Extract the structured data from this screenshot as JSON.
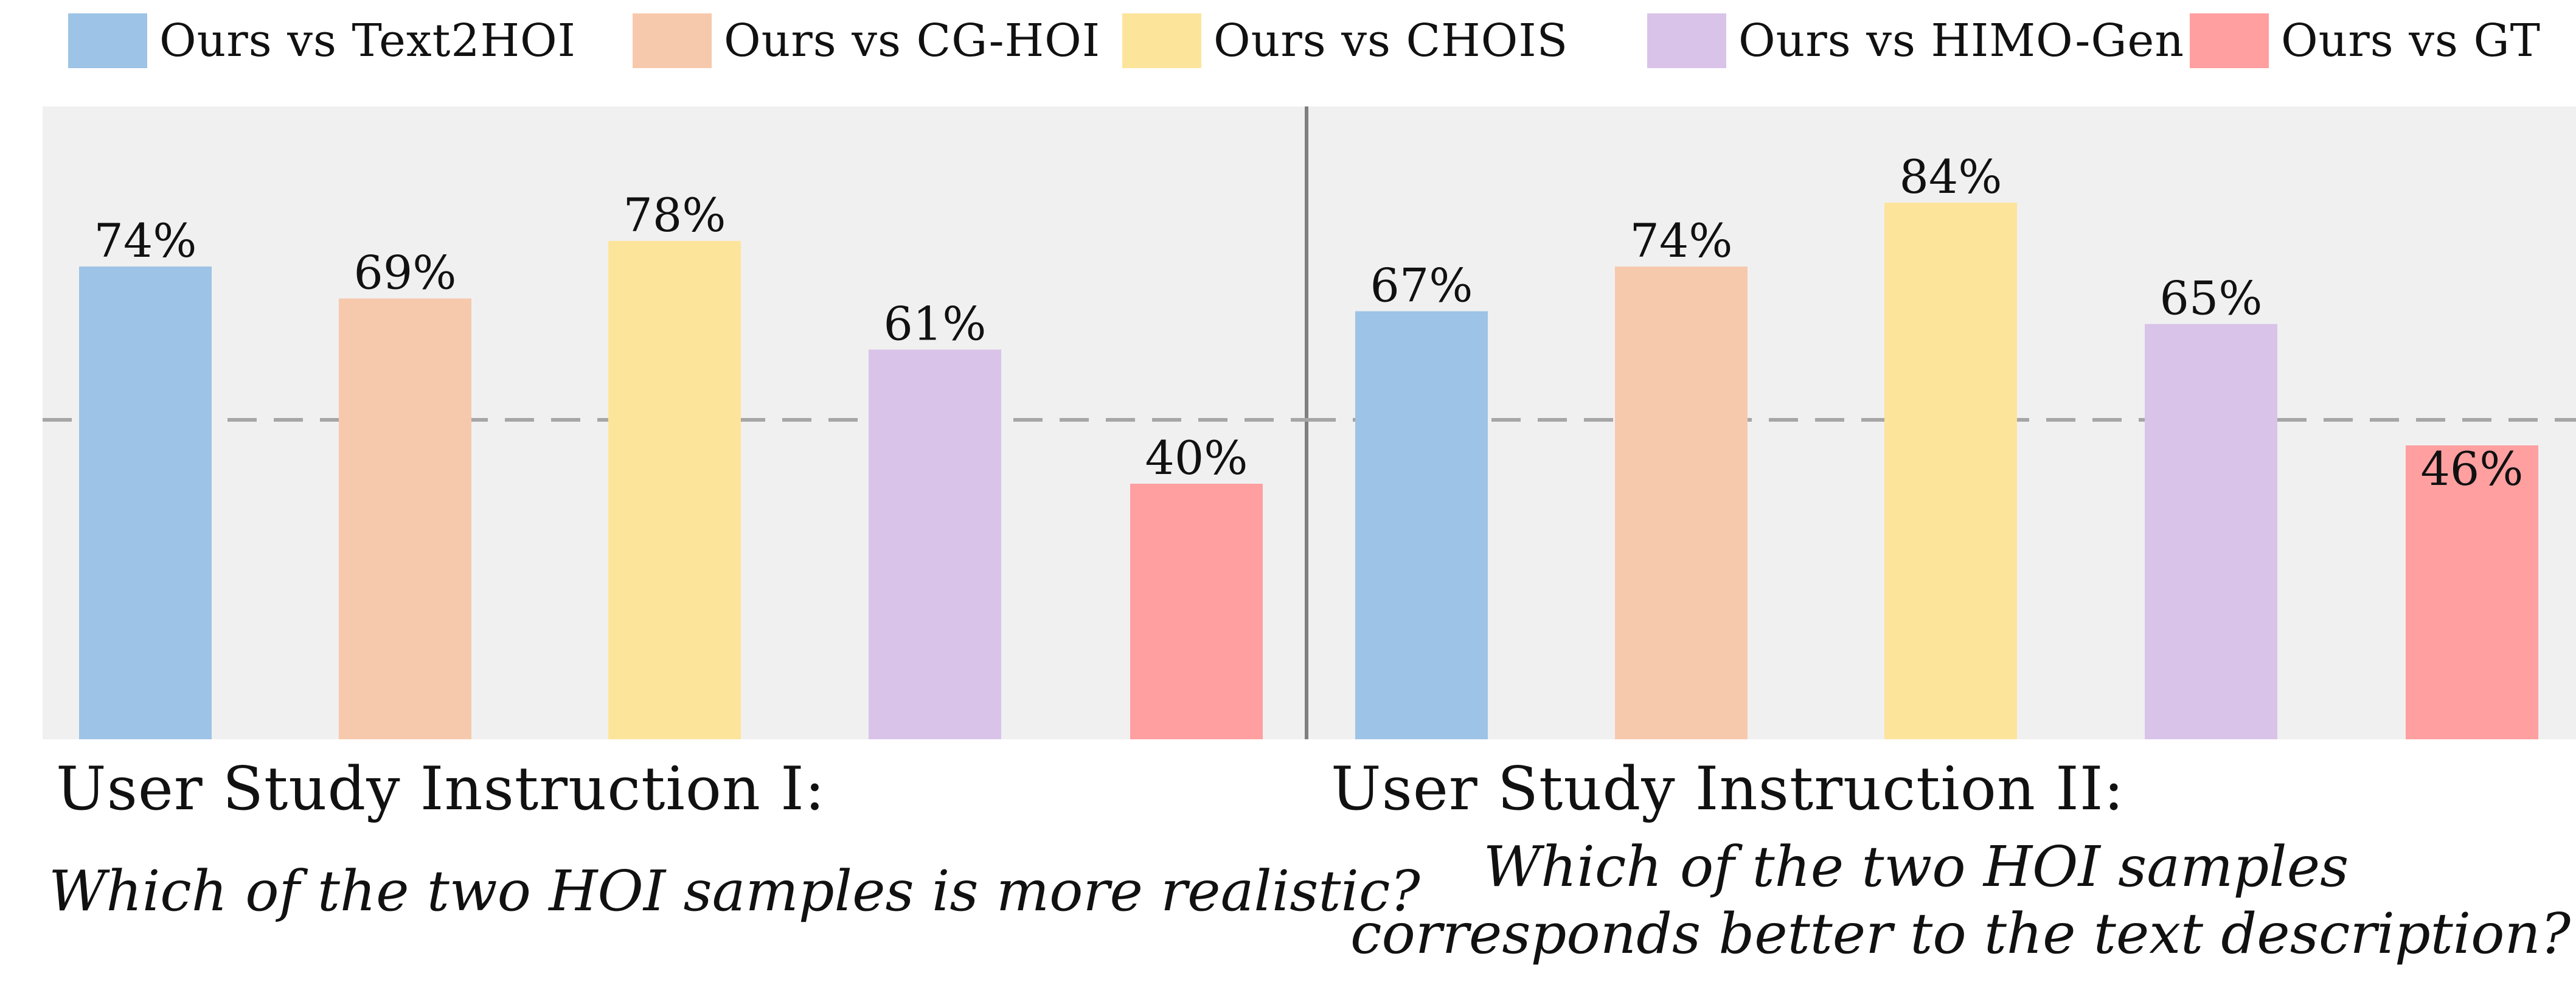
{
  "legend": [
    {
      "label": "Ours vs Text2HOI",
      "color": "#9dc3e6"
    },
    {
      "label": "Ours vs CG-HOI",
      "color": "#f7c9ac"
    },
    {
      "label": "Ours vs CHOIS",
      "color": "#fde49b"
    },
    {
      "label": "Ours vs HIMO-Gen",
      "color": "#d9c3e9"
    },
    {
      "label": "Ours vs GT",
      "color": "#ff9fa0"
    }
  ],
  "chart_data": [
    {
      "type": "bar",
      "title": "User Study Instruction I:",
      "subtitle": "Which of the two HOI samples is more realistic?",
      "categories": [
        "Ours vs Text2HOI",
        "Ours vs CG-HOI",
        "Ours vs CHOIS",
        "Ours vs HIMO-Gen",
        "Ours vs GT"
      ],
      "values": [
        74,
        69,
        78,
        61,
        40
      ],
      "labels": [
        "74%",
        "69%",
        "78%",
        "61%",
        "40%"
      ],
      "reference_line": 50,
      "ylim": [
        0,
        100
      ],
      "unit": "%"
    },
    {
      "type": "bar",
      "title": "User Study Instruction II:",
      "subtitle_lines": [
        "Which of the two HOI samples",
        "corresponds better to the text description?"
      ],
      "categories": [
        "Ours vs Text2HOI",
        "Ours vs CG-HOI",
        "Ours vs CHOIS",
        "Ours vs HIMO-Gen",
        "Ours vs GT"
      ],
      "values": [
        67,
        74,
        84,
        65,
        46
      ],
      "labels": [
        "67%",
        "74%",
        "84%",
        "65%",
        "46%"
      ],
      "reference_line": 50,
      "ylim": [
        0,
        100
      ],
      "unit": "%"
    }
  ]
}
